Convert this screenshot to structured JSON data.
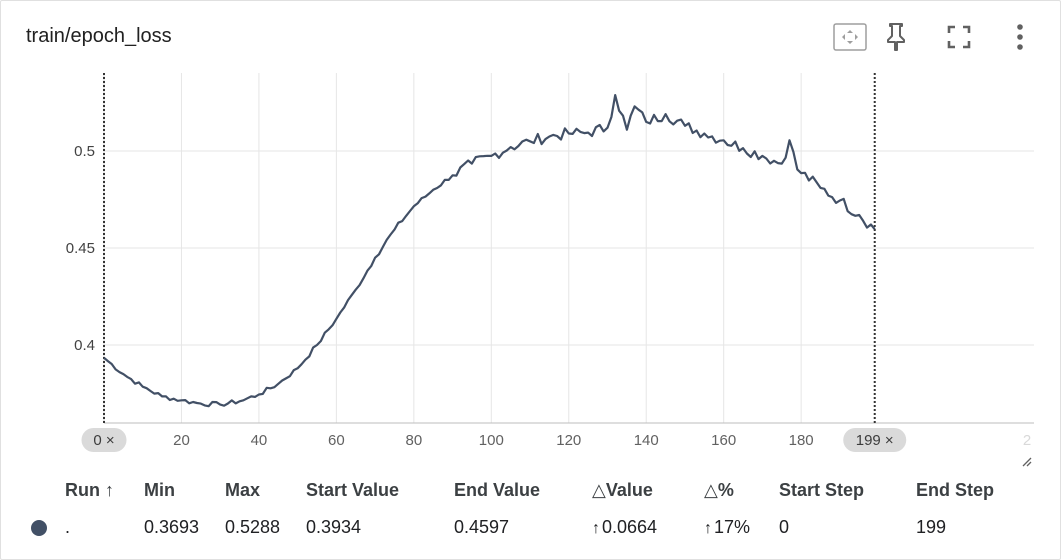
{
  "card": {
    "title": "train/epoch_loss"
  },
  "toolbar": {
    "fit_icon": "fit-domain-icon",
    "pin_icon": "pin-icon",
    "fullscreen_icon": "fullscreen-icon",
    "more_icon": "more-vert-icon"
  },
  "chart_data": {
    "type": "line",
    "title": "",
    "xlabel": "",
    "ylabel": "",
    "xlim": [
      0,
      200
    ],
    "ylim": [
      0.36,
      0.54
    ],
    "grid": true,
    "x_ticks": [
      "0",
      "20",
      "40",
      "60",
      "80",
      "100",
      "120",
      "140",
      "160",
      "180",
      "2"
    ],
    "y_ticks": [
      "0.4",
      "0.45",
      "0.5"
    ],
    "series_color": "#425066",
    "series": [
      {
        "name": ".",
        "points": [
          [
            0,
            0.3934
          ],
          [
            5,
            0.385
          ],
          [
            10,
            0.3785
          ],
          [
            15,
            0.3735
          ],
          [
            20,
            0.3715
          ],
          [
            25,
            0.3698
          ],
          [
            30,
            0.3693
          ],
          [
            35,
            0.371
          ],
          [
            40,
            0.3745
          ],
          [
            45,
            0.38
          ],
          [
            50,
            0.388
          ],
          [
            55,
            0.4
          ],
          [
            60,
            0.4135
          ],
          [
            65,
            0.4285
          ],
          [
            70,
            0.445
          ],
          [
            75,
            0.4595
          ],
          [
            80,
            0.4715
          ],
          [
            85,
            0.48
          ],
          [
            90,
            0.4875
          ],
          [
            95,
            0.4935
          ],
          [
            100,
            0.4975
          ],
          [
            105,
            0.502
          ],
          [
            110,
            0.505
          ],
          [
            115,
            0.5075
          ],
          [
            120,
            0.509
          ],
          [
            125,
            0.5095
          ],
          [
            130,
            0.512
          ],
          [
            132,
            0.5288
          ],
          [
            135,
            0.511
          ],
          [
            137,
            0.523
          ],
          [
            140,
            0.515
          ],
          [
            145,
            0.519
          ],
          [
            150,
            0.513
          ],
          [
            155,
            0.509
          ],
          [
            160,
            0.5055
          ],
          [
            165,
            0.5015
          ],
          [
            170,
            0.4975
          ],
          [
            175,
            0.4935
          ],
          [
            177,
            0.5055
          ],
          [
            179,
            0.4905
          ],
          [
            185,
            0.481
          ],
          [
            190,
            0.4745
          ],
          [
            195,
            0.467
          ],
          [
            199,
            0.4597
          ]
        ]
      }
    ],
    "selection": {
      "start_step": "0",
      "end_step": "199",
      "close_symbol": "×"
    }
  },
  "table": {
    "headers": {
      "run": "Run ↑",
      "min": "Min",
      "max": "Max",
      "start_value": "Start Value",
      "end_value": "End Value",
      "delta_value": "△Value",
      "delta_percent": "△%",
      "start_step": "Start Step",
      "end_step": "End Step"
    },
    "rows": [
      {
        "run": ".",
        "color": "#425066",
        "min": "0.3693",
        "max": "0.5288",
        "start_value": "0.3934",
        "end_value": "0.4597",
        "delta_value": "0.0664",
        "delta_value_arrow": "↑",
        "delta_percent": "17%",
        "delta_percent_arrow": "↑",
        "start_step": "0",
        "end_step": "199"
      }
    ]
  }
}
